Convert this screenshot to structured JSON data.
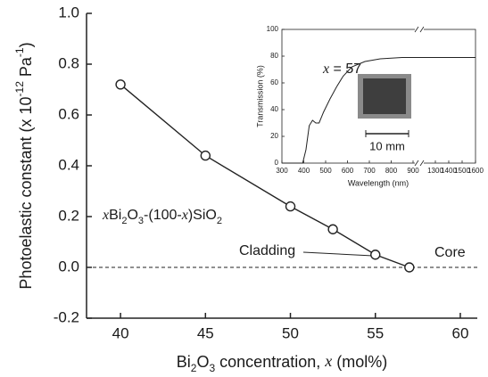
{
  "chart_data": [
    {
      "type": "line",
      "markers": true,
      "y_label": [
        "Photoelastic constant (x 10",
        "-12",
        " Pa",
        "-1",
        ")"
      ],
      "x_label": [
        "Bi",
        "2",
        "O",
        "3",
        " concentration, ",
        "x",
        " (mol%)"
      ],
      "formula": [
        "x",
        "Bi",
        "2",
        "O",
        "3",
        "-(100-",
        "x",
        ")SiO",
        "2"
      ],
      "annotations": [
        "Cladding",
        "Core"
      ],
      "x": [
        40,
        45,
        50,
        52.5,
        55,
        57
      ],
      "values": [
        0.72,
        0.44,
        0.24,
        0.15,
        0.05,
        0
      ],
      "color": "#222222",
      "reference_line": 0,
      "xlim": [
        38,
        61
      ],
      "xticks": [
        40,
        45,
        50,
        55,
        60
      ],
      "ylim": [
        -0.2,
        1.0
      ],
      "yticks": [
        -0.2,
        {
          "value": 0,
          "label": "0.0"
        },
        0.2,
        0.4,
        0.6,
        0.8,
        {
          "value": 1,
          "label": "1.0"
        }
      ]
    },
    {
      "type": "line",
      "markers": false,
      "y_label": "Transmission (%)",
      "x_label": "Wavelength (nm)",
      "annotation": [
        "x",
        " = 57"
      ],
      "scale_bar": "10 mm",
      "x": [
        300,
        380,
        395,
        410,
        425,
        440,
        455,
        470,
        490,
        520,
        550,
        580,
        620,
        680,
        750,
        850,
        900,
        1300,
        1600
      ],
      "values": [
        0,
        0,
        0,
        10,
        28,
        32,
        30,
        30,
        38,
        48,
        57,
        65,
        72,
        76,
        78,
        79,
        79,
        79,
        79
      ],
      "color": "#222222",
      "xlim": [
        300,
        1600
      ],
      "x_break": [
        900,
        1300
      ],
      "xticks": [
        300,
        400,
        500,
        600,
        700,
        800,
        900,
        1300,
        1400,
        1500,
        1600
      ],
      "ylim": [
        0,
        100
      ],
      "yticks": [
        0,
        20,
        40,
        60,
        80,
        100
      ]
    }
  ]
}
